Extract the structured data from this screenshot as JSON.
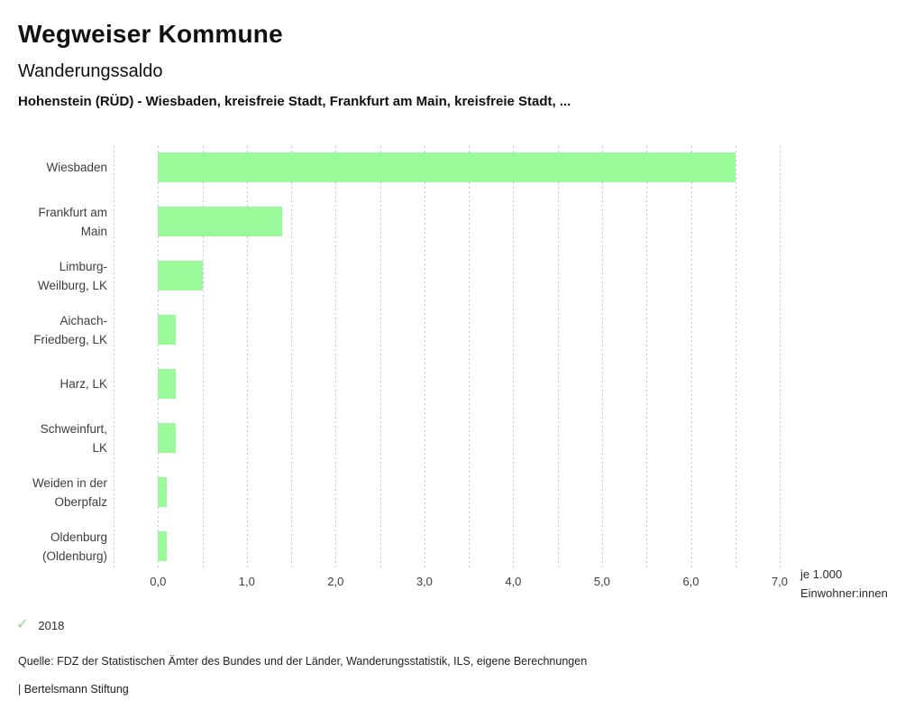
{
  "header": {
    "title": "Wegweiser Kommune",
    "subtitle": "Wanderungssaldo",
    "description": "Hohenstein (RÜD) - Wiesbaden, kreisfreie Stadt, Frankfurt am Main, kreisfreie Stadt, ..."
  },
  "chart_data": {
    "type": "bar",
    "orientation": "horizontal",
    "title": "Wanderungssaldo",
    "categories": [
      "Wiesbaden",
      "Frankfurt am Main",
      "Limburg-Weilburg, LK",
      "Aichach-Friedberg, LK",
      "Harz, LK",
      "Schweinfurt, LK",
      "Weiden in der Oberpfalz",
      "Oldenburg (Oldenburg)"
    ],
    "category_lines": [
      [
        "Wiesbaden"
      ],
      [
        "Frankfurt am",
        "Main"
      ],
      [
        "Limburg-",
        "Weilburg, LK"
      ],
      [
        "Aichach-",
        "Friedberg, LK"
      ],
      [
        "Harz, LK"
      ],
      [
        "Schweinfurt,",
        "LK"
      ],
      [
        "Weiden in der",
        "Oberpfalz"
      ],
      [
        "Oldenburg",
        "(Oldenburg)"
      ]
    ],
    "series": [
      {
        "name": "2018",
        "values": [
          6.5,
          1.4,
          0.5,
          0.2,
          0.2,
          0.2,
          0.1,
          0.1
        ]
      }
    ],
    "xlabel": "je 1.000 Einwohner:innen",
    "xlabel_lines": [
      "je 1.000",
      "Einwohner:innen"
    ],
    "xlim": [
      -0.5,
      7.0
    ],
    "xticks": [
      0,
      1,
      2,
      3,
      4,
      5,
      6,
      7
    ],
    "xtick_labels": [
      "0,0",
      "1,0",
      "2,0",
      "3,0",
      "4,0",
      "5,0",
      "6,0",
      "7,0"
    ],
    "gridline_step": 0.5,
    "grid": true,
    "legend_position": "bottom-left",
    "colors": {
      "bar": "#98FA98",
      "gridline": "#c7c7c7",
      "legend_check": "#8ad88a",
      "text": "#3d3d3d"
    }
  },
  "legend": {
    "check_icon_name": "check-icon",
    "year_label": "2018"
  },
  "footer": {
    "source": "Quelle: FDZ der Statistischen Ämter des Bundes und der Länder, Wanderungsstatistik, ILS, eigene Berechnungen",
    "branding": "| Bertelsmann Stiftung"
  }
}
